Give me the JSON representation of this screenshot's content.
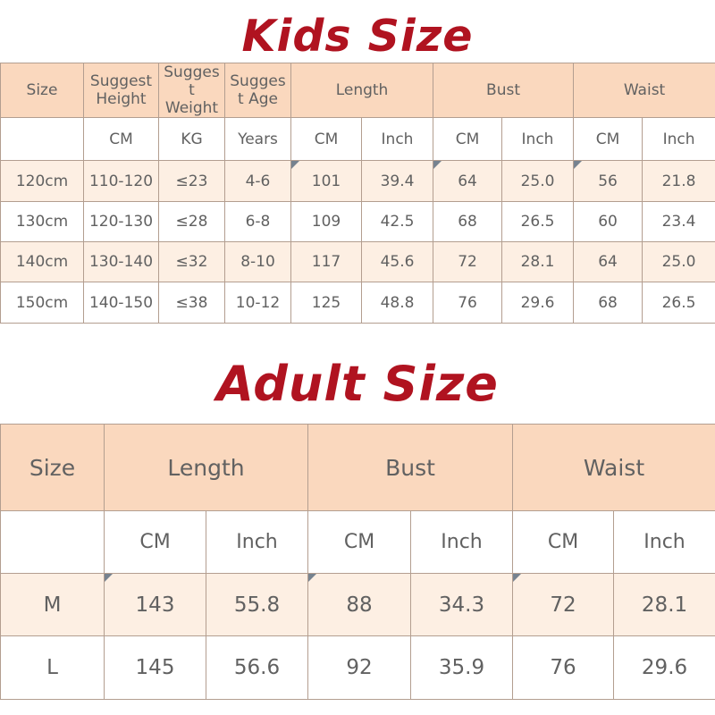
{
  "colors": {
    "title": "#b01320",
    "header_bg": "#fad8be",
    "row_alt_bg": "#fdefe3",
    "border": "#b39e90",
    "text": "#616161",
    "flag": "#76828f"
  },
  "kids": {
    "title": "Kids Size",
    "header": [
      {
        "label": "Size",
        "span": 1
      },
      {
        "label": "Suggest Height",
        "span": 1
      },
      {
        "label": "Suggest Weight",
        "span": 1
      },
      {
        "label": "Suggest Age",
        "span": 1
      },
      {
        "label": "Length",
        "span": 2
      },
      {
        "label": "Bust",
        "span": 2
      },
      {
        "label": "Waist",
        "span": 2
      }
    ],
    "units": [
      "",
      "CM",
      "KG",
      "Years",
      "CM",
      "Inch",
      "CM",
      "Inch",
      "CM",
      "Inch"
    ],
    "rows": [
      {
        "cells": [
          "120cm",
          "110-120",
          "≤23",
          "4-6",
          "101",
          "39.4",
          "64",
          "25.0",
          "56",
          "21.8"
        ],
        "flags": [
          4,
          6,
          8
        ]
      },
      {
        "cells": [
          "130cm",
          "120-130",
          "≤28",
          "6-8",
          "109",
          "42.5",
          "68",
          "26.5",
          "60",
          "23.4"
        ],
        "flags": []
      },
      {
        "cells": [
          "140cm",
          "130-140",
          "≤32",
          "8-10",
          "117",
          "45.6",
          "72",
          "28.1",
          "64",
          "25.0"
        ],
        "flags": []
      },
      {
        "cells": [
          "150cm",
          "140-150",
          "≤38",
          "10-12",
          "125",
          "48.8",
          "76",
          "29.6",
          "68",
          "26.5"
        ],
        "flags": []
      }
    ]
  },
  "adult": {
    "title": "Adult Size",
    "header": [
      {
        "label": "Size",
        "span": 1
      },
      {
        "label": "Length",
        "span": 2
      },
      {
        "label": "Bust",
        "span": 2
      },
      {
        "label": "Waist",
        "span": 2
      }
    ],
    "units": [
      "",
      "CM",
      "Inch",
      "CM",
      "Inch",
      "CM",
      "Inch"
    ],
    "rows": [
      {
        "cells": [
          "M",
          "143",
          "55.8",
          "88",
          "34.3",
          "72",
          "28.1"
        ],
        "flags": [
          1,
          3,
          5
        ]
      },
      {
        "cells": [
          "L",
          "145",
          "56.6",
          "92",
          "35.9",
          "76",
          "29.6"
        ],
        "flags": []
      }
    ]
  }
}
